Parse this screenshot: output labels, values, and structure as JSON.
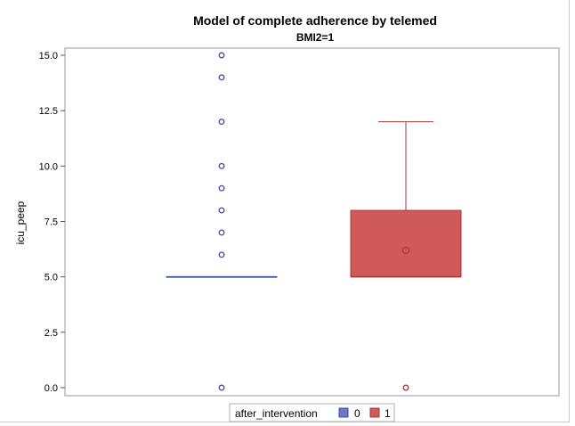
{
  "chart_data": {
    "type": "box",
    "title": "Model of complete adherence by telemed",
    "subtitle": "BMI2=1",
    "xlabel": "",
    "ylabel": "icu_peep",
    "ylim": [
      0,
      15
    ],
    "yticks": [
      "0.0",
      "2.5",
      "5.0",
      "7.5",
      "10.0",
      "12.5",
      "15.0"
    ],
    "grid": false,
    "legend": {
      "title": "after_intervention",
      "position": "bottom-center",
      "entries": [
        {
          "label": "0",
          "color": "#6b78c2"
        },
        {
          "label": "1",
          "color": "#d05a5a"
        }
      ]
    },
    "series": [
      {
        "name": "0",
        "color": "#6b78c2",
        "edge_color": "#3a4fa0",
        "q1": 5,
        "median": 5,
        "q3": 5,
        "whisker_low": 5,
        "whisker_high": 5,
        "mean": 5,
        "outliers": [
          0,
          6,
          7,
          8,
          9,
          10,
          12,
          14,
          15
        ]
      },
      {
        "name": "1",
        "color": "#d05a5a",
        "edge_color": "#a33a3a",
        "q1": 5,
        "median": 5,
        "q3": 8,
        "whisker_low": 5,
        "whisker_high": 12,
        "mean": 6.2,
        "outliers": [
          0
        ]
      }
    ]
  }
}
